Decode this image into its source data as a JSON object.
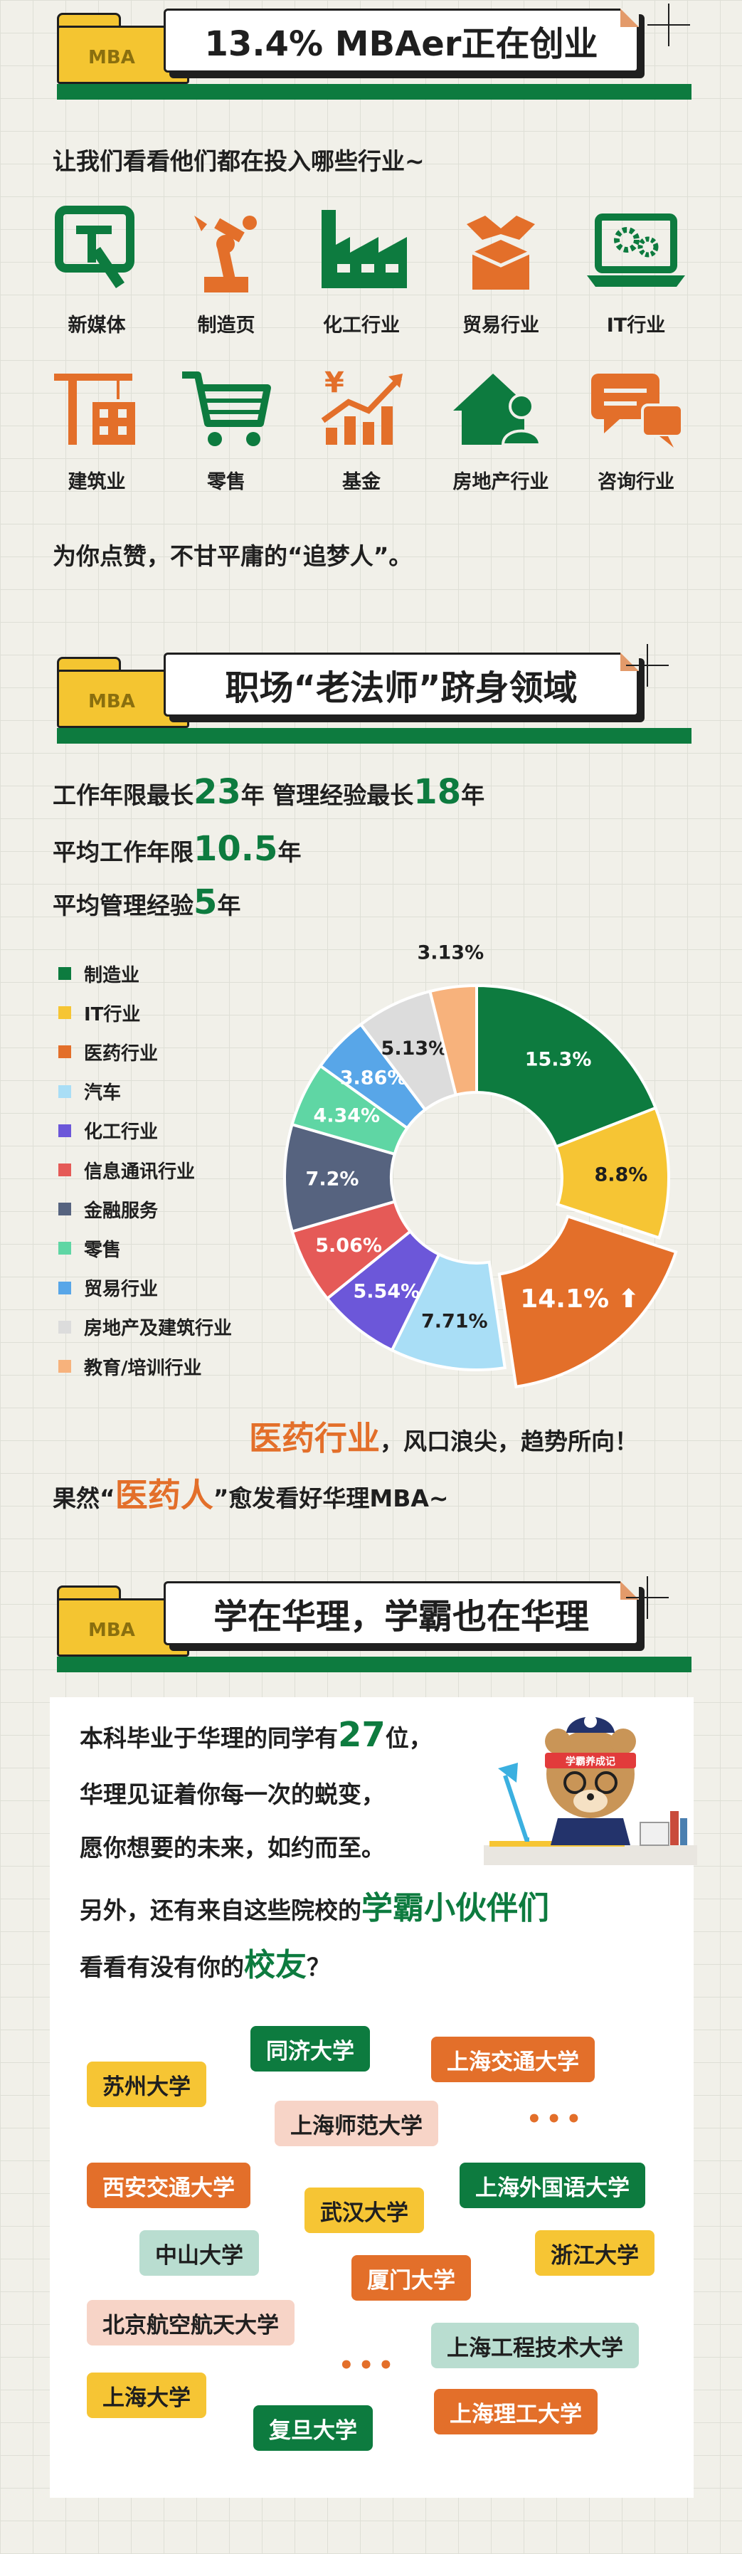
{
  "section1": {
    "folder": "MBA",
    "title": "13.4% MBAer正在创业",
    "intro": "让我们看看他们都在投入哪些行业~",
    "industries": [
      {
        "label": "新媒体",
        "icon": "new-media-icon"
      },
      {
        "label": "制造页",
        "icon": "robot-arm-icon"
      },
      {
        "label": "化工行业",
        "icon": "factory-icon"
      },
      {
        "label": "贸易行业",
        "icon": "handshake-box-icon"
      },
      {
        "label": "IT行业",
        "icon": "laptop-gears-icon"
      },
      {
        "label": "建筑业",
        "icon": "crane-building-icon"
      },
      {
        "label": "零售",
        "icon": "shopping-cart-icon"
      },
      {
        "label": "基金",
        "icon": "yen-chart-icon"
      },
      {
        "label": "房地产行业",
        "icon": "house-person-icon"
      },
      {
        "label": "咨询行业",
        "icon": "chat-bubbles-icon"
      }
    ],
    "closing": "为你点赞，不甘平庸的“追梦人”。"
  },
  "section2": {
    "folder": "MBA",
    "title": "职场“老法师”跻身领域",
    "line1_a": "工作年限最长",
    "line1_b": "23",
    "line1_c": "年  管理经验最长",
    "line1_d": "18",
    "line1_e": "年",
    "line2_a": "平均工作年限",
    "line2_b": "10.5",
    "line2_c": "年",
    "line3_a": "平均管理经验",
    "line3_b": "5",
    "line3_c": "年",
    "medical_a": "医药行业",
    "medical_b": "，风口浪尖，趋势所向！",
    "result_a": "果然“",
    "result_b": "医药人",
    "result_c": "”愈发看好华理MBA~"
  },
  "chart_data": {
    "type": "pie",
    "categories": [
      "制造业",
      "IT行业",
      "医药行业",
      "汽车",
      "化工行业",
      "信息通讯行业",
      "金融服务",
      "零售",
      "贸易行业",
      "房地产及建筑行业",
      "教育/培训行业"
    ],
    "values": [
      15.3,
      8.8,
      14.1,
      7.71,
      5.54,
      5.06,
      7.2,
      4.34,
      3.86,
      5.13,
      3.13
    ],
    "labels": [
      "15.3%",
      "8.8%",
      "14.1%",
      "7.71%",
      "5.54%",
      "5.06%",
      "7.2%",
      "4.34%",
      "3.86%",
      "5.13%",
      "3.13%"
    ],
    "colors": [
      "#0d7b3f",
      "#f6c534",
      "#e36f2a",
      "#a9def6",
      "#6c57d9",
      "#e55a57",
      "#56637f",
      "#5fd6a4",
      "#58a6e8",
      "#dcdcdc",
      "#f7b27c"
    ],
    "highlight": "医药行业",
    "legend_position": "left",
    "donut": true
  },
  "section3": {
    "folder": "MBA",
    "title": "学在华理，学霸也在华理",
    "p1_a": "本科毕业于华理的同学有",
    "p1_b": "27",
    "p1_c": "位，",
    "p2": "华理见证着你每一次的蜕变，",
    "p3": "愿你想要的未来，如约而至。",
    "p4_a": "另外，还有来自这些院校的",
    "p4_b": "学霸小伙伴们",
    "p5_a": "看看有没有你的",
    "p5_b": "校友",
    "p5_c": "？",
    "mascot_badge": "学霸养成记",
    "schools": [
      "同济大学",
      "上海交通大学",
      "苏州大学",
      "上海师范大学",
      "西安交通大学",
      "上海外国语大学",
      "武汉大学",
      "中山大学",
      "浙江大学",
      "厦门大学",
      "北京航空航天大学",
      "上海工程技术大学",
      "上海大学",
      "复旦大学",
      "上海理工大学"
    ],
    "ellipsis": "•••"
  }
}
